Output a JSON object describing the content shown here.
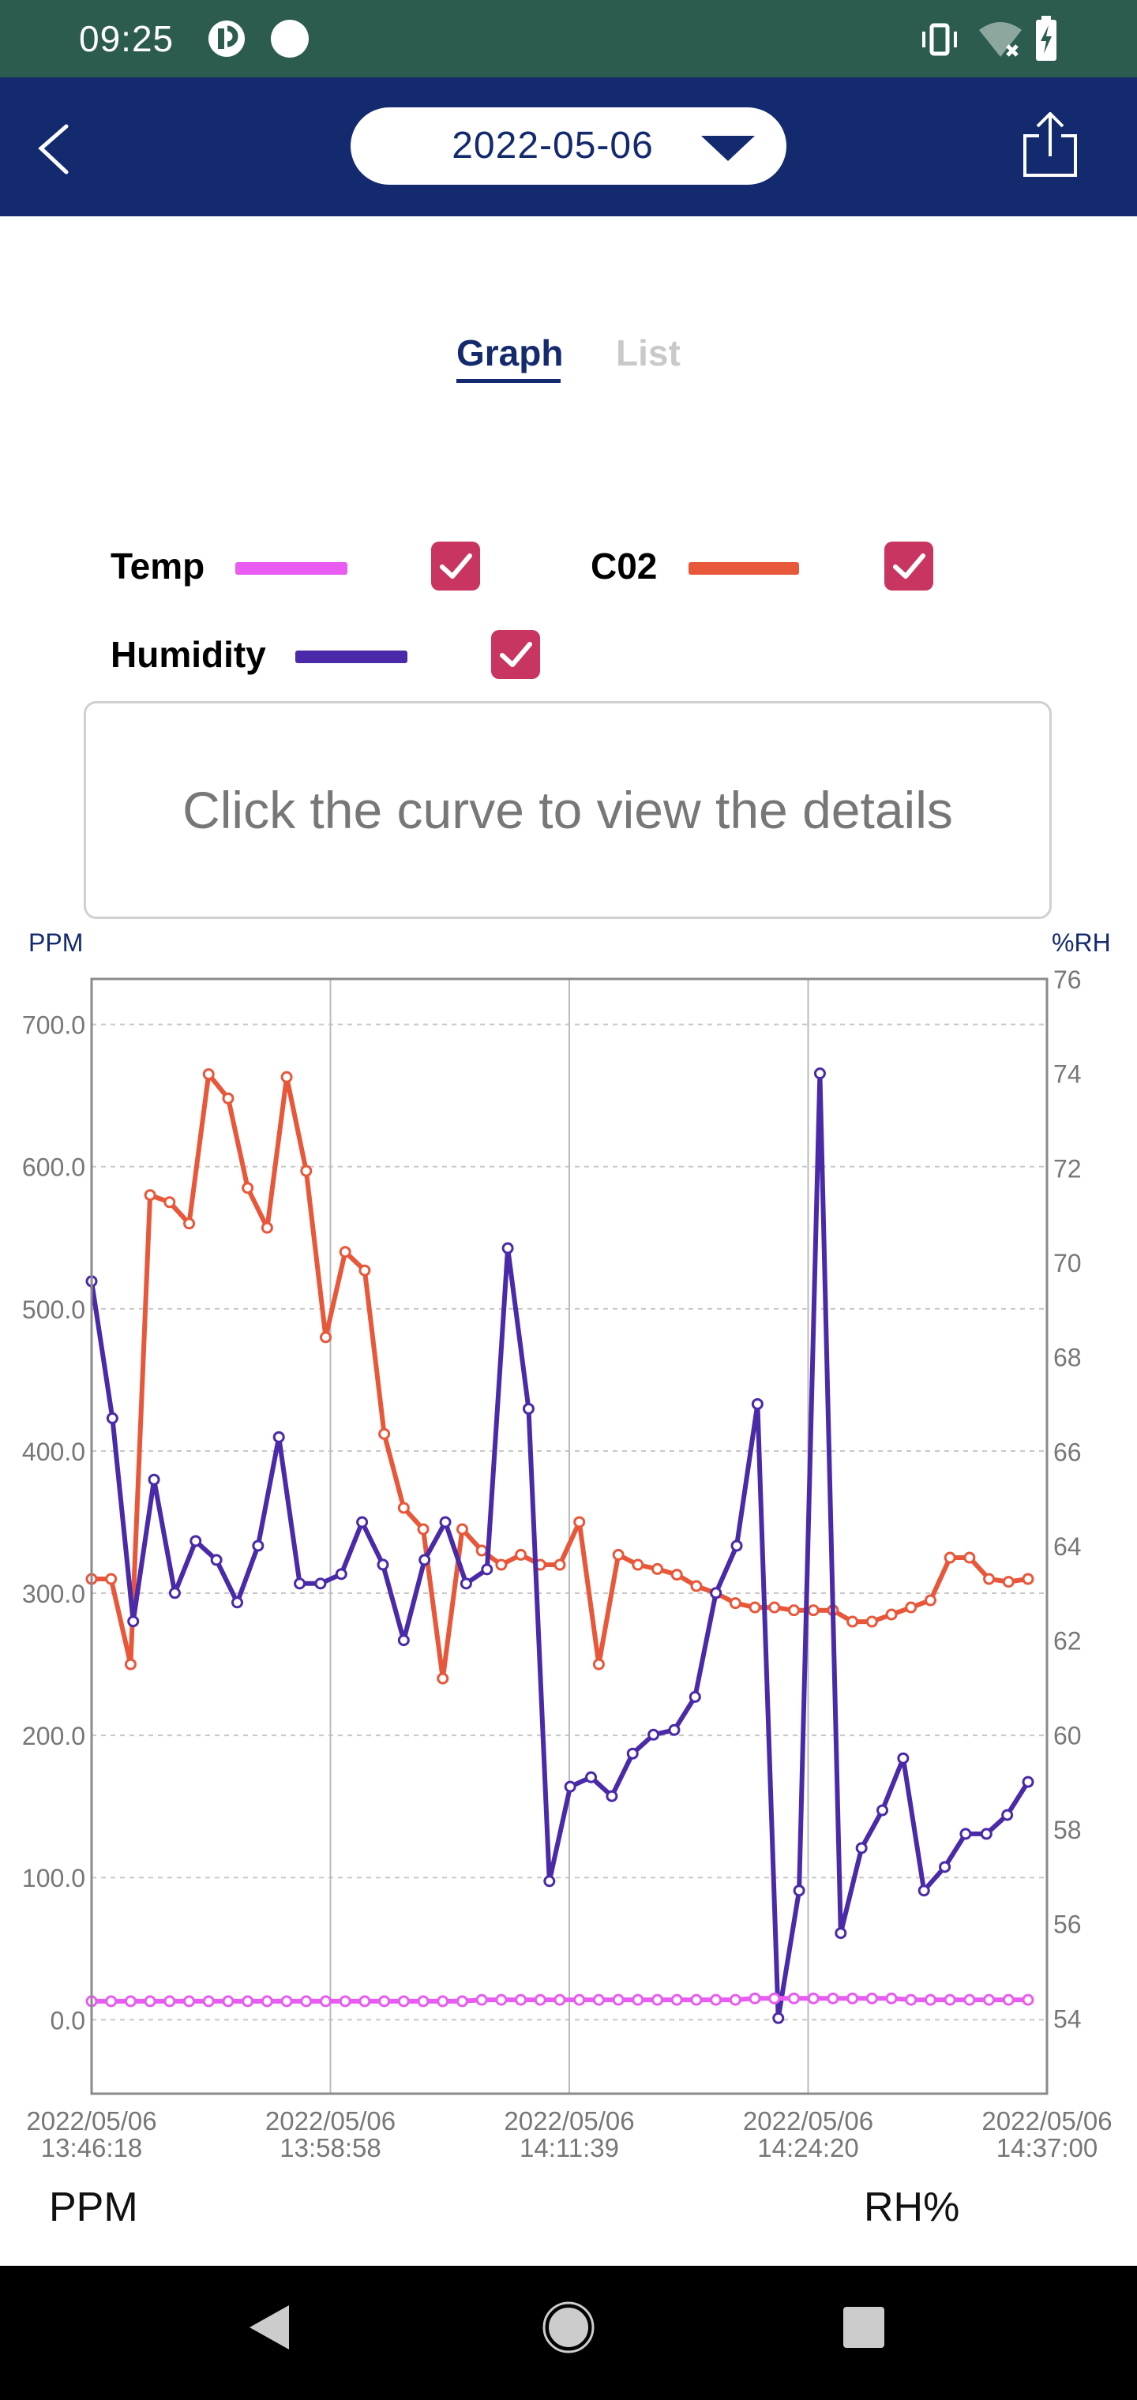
{
  "status_bar": {
    "time": "09:25"
  },
  "header": {
    "date": "2022-05-06"
  },
  "tabs": [
    {
      "label": "Graph",
      "active": true
    },
    {
      "label": "List",
      "active": false
    }
  ],
  "legend": [
    {
      "label": "Temp",
      "color": "#e85cf2",
      "checked": true
    },
    {
      "label": "C02",
      "color": "#e8573a",
      "checked": true
    },
    {
      "label": "Humidity",
      "color": "#4a2aa8",
      "checked": true
    }
  ],
  "hint": "Click the curve to view the details",
  "axis_units": {
    "left": "PPM",
    "right": "%RH"
  },
  "bottom_labels": {
    "left": "PPM",
    "right": "RH%"
  },
  "chart_data": {
    "type": "line",
    "left_axis": {
      "ticks": [
        "700.0",
        "600.0",
        "500.0",
        "400.0",
        "300.0",
        "200.0",
        "100.0",
        "0.0"
      ],
      "range": [
        -52,
        732
      ],
      "label": "PPM"
    },
    "right_axis": {
      "ticks": [
        "76",
        "74",
        "72",
        "70",
        "68",
        "66",
        "64",
        "62",
        "60",
        "58",
        "56",
        "54"
      ],
      "range": [
        52.4,
        76
      ],
      "label": "%RH"
    },
    "x_ticks": [
      [
        "2022/05/06",
        "13:46:18"
      ],
      [
        "2022/05/06",
        "13:58:58"
      ],
      [
        "2022/05/06",
        "14:11:39"
      ],
      [
        "2022/05/06",
        "14:24:20"
      ],
      [
        "2022/05/06",
        "14:37:00"
      ]
    ],
    "series": [
      {
        "name": "C02",
        "color": "#e8573a",
        "axis": "left",
        "values": [
          310,
          310,
          250,
          580,
          575,
          560,
          665,
          648,
          585,
          557,
          663,
          597,
          480,
          540,
          527,
          412,
          360,
          345,
          240,
          345,
          330,
          320,
          327,
          320,
          320,
          350,
          250,
          327,
          320,
          317,
          313,
          305,
          300,
          293,
          290,
          290,
          288,
          288,
          288,
          280,
          280,
          285,
          290,
          295,
          325,
          325,
          310,
          308,
          310
        ]
      },
      {
        "name": "Humidity",
        "color": "#4a2aa8",
        "axis": "right",
        "values": [
          69.6,
          66.7,
          62.4,
          65.4,
          63.0,
          64.1,
          63.7,
          62.8,
          64.0,
          66.3,
          63.2,
          63.2,
          63.4,
          64.5,
          63.6,
          62.0,
          63.7,
          64.5,
          63.2,
          63.5,
          70.3,
          66.9,
          56.9,
          58.9,
          59.1,
          58.7,
          59.6,
          60.0,
          60.1,
          60.8,
          63.0,
          64.0,
          67.0,
          54.0,
          56.7,
          74.0,
          55.8,
          57.6,
          58.4,
          59.5,
          56.7,
          57.2,
          57.9,
          57.9,
          58.3,
          59.0
        ]
      },
      {
        "name": "Temp",
        "color": "#e85cf2",
        "axis": "left",
        "values": [
          13,
          13,
          13,
          13,
          13,
          13,
          13,
          13,
          13,
          13,
          13,
          13,
          13,
          13,
          13,
          13,
          13,
          13,
          13,
          13,
          14,
          14,
          14,
          14,
          14,
          14,
          14,
          14,
          14,
          14,
          14,
          14,
          14,
          14,
          15,
          15,
          15,
          15,
          15,
          15,
          15,
          15,
          14,
          14,
          14,
          14,
          14,
          14,
          14
        ]
      }
    ]
  }
}
